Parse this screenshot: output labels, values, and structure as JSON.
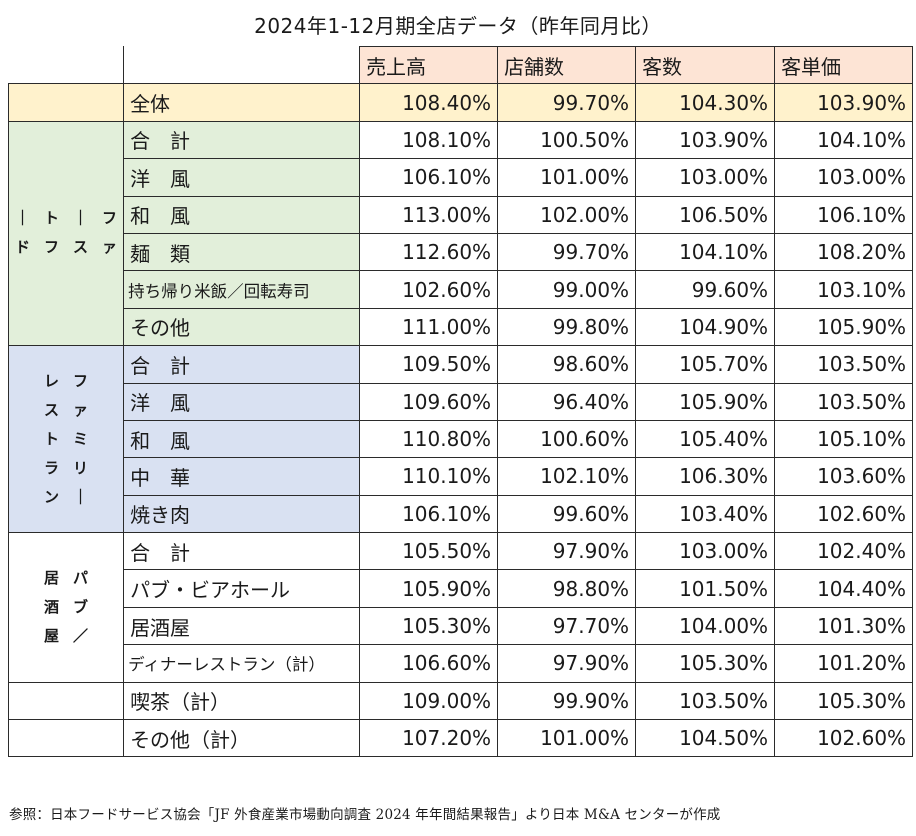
{
  "title": "2024年1-12月期全店データ（昨年同月比）",
  "headers": [
    "売上高",
    "店舗数",
    "客数",
    "客単価"
  ],
  "total": {
    "label": "全体",
    "values": [
      "108.40%",
      "99.70%",
      "104.30%",
      "103.90%"
    ]
  },
  "groups": [
    {
      "label_columns": [
        "ファ",
        "ース",
        "トフ",
        "ード"
      ],
      "rows": [
        {
          "label": "合　計",
          "values": [
            "108.10%",
            "100.50%",
            "103.90%",
            "104.10%"
          ]
        },
        {
          "label": "洋　風",
          "values": [
            "106.10%",
            "101.00%",
            "103.00%",
            "103.00%"
          ]
        },
        {
          "label": "和　風",
          "values": [
            "113.00%",
            "102.00%",
            "106.50%",
            "106.10%"
          ]
        },
        {
          "label": "麺　類",
          "values": [
            "112.60%",
            "99.70%",
            "104.10%",
            "108.20%"
          ]
        },
        {
          "label": "持ち帰り米飯／回転寿司",
          "values": [
            "102.60%",
            "99.00%",
            "99.60%",
            "103.10%"
          ]
        },
        {
          "label": "その他",
          "values": [
            "111.00%",
            "99.80%",
            "104.90%",
            "105.90%"
          ]
        }
      ]
    },
    {
      "label_columns": [
        "ファミリー",
        "レストラン"
      ],
      "rows": [
        {
          "label": "合　計",
          "values": [
            "109.50%",
            "98.60%",
            "105.70%",
            "103.50%"
          ]
        },
        {
          "label": "洋　風",
          "values": [
            "109.60%",
            "96.40%",
            "105.90%",
            "103.50%"
          ]
        },
        {
          "label": "和　風",
          "values": [
            "110.80%",
            "100.60%",
            "105.40%",
            "105.10%"
          ]
        },
        {
          "label": "中　華",
          "values": [
            "110.10%",
            "102.10%",
            "106.30%",
            "103.60%"
          ]
        },
        {
          "label": "焼き肉",
          "values": [
            "106.10%",
            "99.60%",
            "103.40%",
            "102.60%"
          ]
        }
      ]
    },
    {
      "label_columns": [
        "パブ／",
        "居酒屋"
      ],
      "rows": [
        {
          "label": "合　計",
          "values": [
            "105.50%",
            "97.90%",
            "103.00%",
            "102.40%"
          ]
        },
        {
          "label": "パブ・ビアホール",
          "values": [
            "105.90%",
            "98.80%",
            "101.50%",
            "104.40%"
          ]
        },
        {
          "label": "居酒屋",
          "values": [
            "105.30%",
            "97.70%",
            "104.00%",
            "101.30%"
          ]
        },
        {
          "label": "ディナーレストラン（計）",
          "values": [
            "106.60%",
            "97.90%",
            "105.30%",
            "101.20%"
          ]
        }
      ]
    }
  ],
  "extra_rows": [
    {
      "label": "喫茶（計）",
      "values": [
        "109.00%",
        "99.90%",
        "103.50%",
        "105.30%"
      ]
    },
    {
      "label": "その他（計）",
      "values": [
        "107.20%",
        "101.00%",
        "104.50%",
        "102.60%"
      ]
    }
  ],
  "note": "参照：日本フードサービス協会「JF 外食産業市場動向調査  2024 年年間結果報告」より日本 M&A センターが作成"
}
